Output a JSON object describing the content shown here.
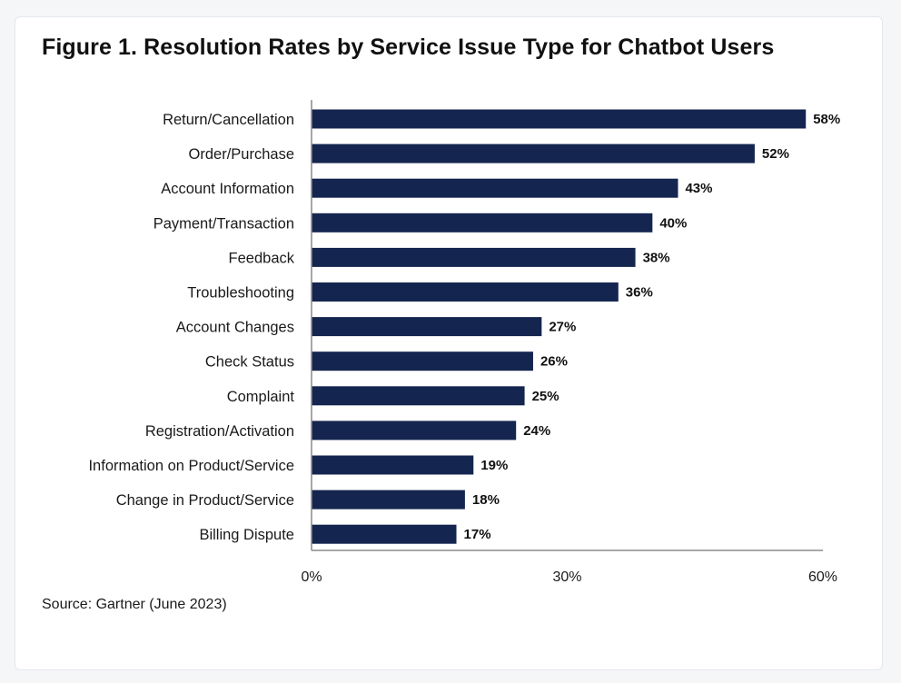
{
  "figure": {
    "title": "Figure 1. Resolution Rates by Service Issue Type for Chatbot Users",
    "source": "Source: Gartner (June 2023)"
  },
  "colors": {
    "bar": "#14254f",
    "axis": "#8a8a8a"
  },
  "chart_data": {
    "type": "bar",
    "orientation": "horizontal",
    "title": "Figure 1. Resolution Rates by Service Issue Type for Chatbot Users",
    "categories": [
      "Return/Cancellation",
      "Order/Purchase",
      "Account Information",
      "Payment/Transaction",
      "Feedback",
      "Troubleshooting",
      "Account Changes",
      "Check Status",
      "Complaint",
      "Registration/Activation",
      "Information on Product/Service",
      "Change in Product/Service",
      "Billing Dispute"
    ],
    "values": [
      58,
      52,
      43,
      40,
      38,
      36,
      27,
      26,
      25,
      24,
      19,
      18,
      17
    ],
    "value_labels": [
      "58%",
      "52%",
      "43%",
      "40%",
      "38%",
      "36%",
      "27%",
      "26%",
      "25%",
      "24%",
      "19%",
      "18%",
      "17%"
    ],
    "xlim": [
      0,
      60
    ],
    "xticks": [
      0,
      30,
      60
    ],
    "xtick_labels": [
      "0%",
      "30%",
      "60%"
    ],
    "xlabel": "",
    "ylabel": "",
    "grid": false,
    "legend": "none"
  }
}
